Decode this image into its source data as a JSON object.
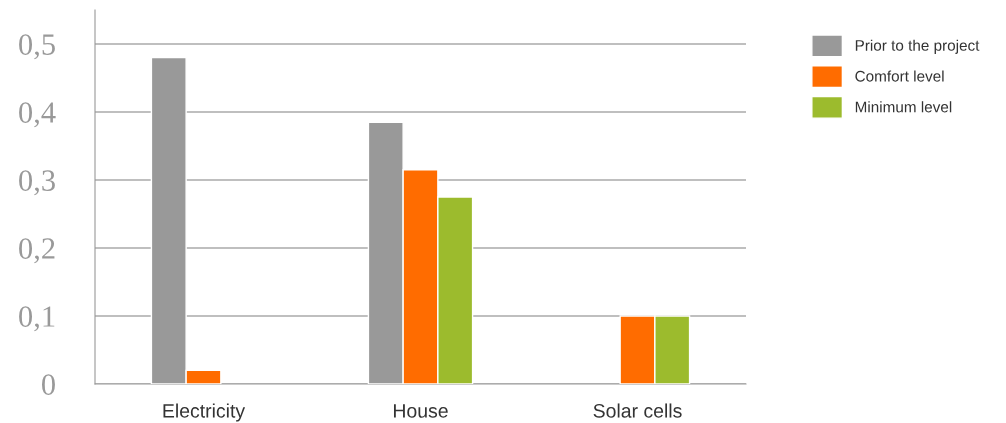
{
  "chart_data": {
    "type": "bar",
    "categories": [
      "Electricity",
      "House",
      "Solar cells"
    ],
    "series": [
      {
        "name": "Prior to the project",
        "color": "#999999",
        "values": [
          0.48,
          0.385,
          null
        ]
      },
      {
        "name": "Comfort level",
        "color": "#ff6c00",
        "values": [
          0.02,
          0.315,
          0.1
        ]
      },
      {
        "name": "Minimum level",
        "color": "#9cbb2d",
        "values": [
          null,
          0.275,
          0.1
        ]
      }
    ],
    "ylim": [
      0,
      0.55
    ],
    "yticks": [
      {
        "value": 0,
        "label": "0"
      },
      {
        "value": 0.1,
        "label": "0,1"
      },
      {
        "value": 0.2,
        "label": "0,2"
      },
      {
        "value": 0.3,
        "label": "0,3"
      },
      {
        "value": 0.4,
        "label": "0,4"
      },
      {
        "value": 0.5,
        "label": "0,5"
      }
    ],
    "grid": "y",
    "legend": "top right"
  }
}
